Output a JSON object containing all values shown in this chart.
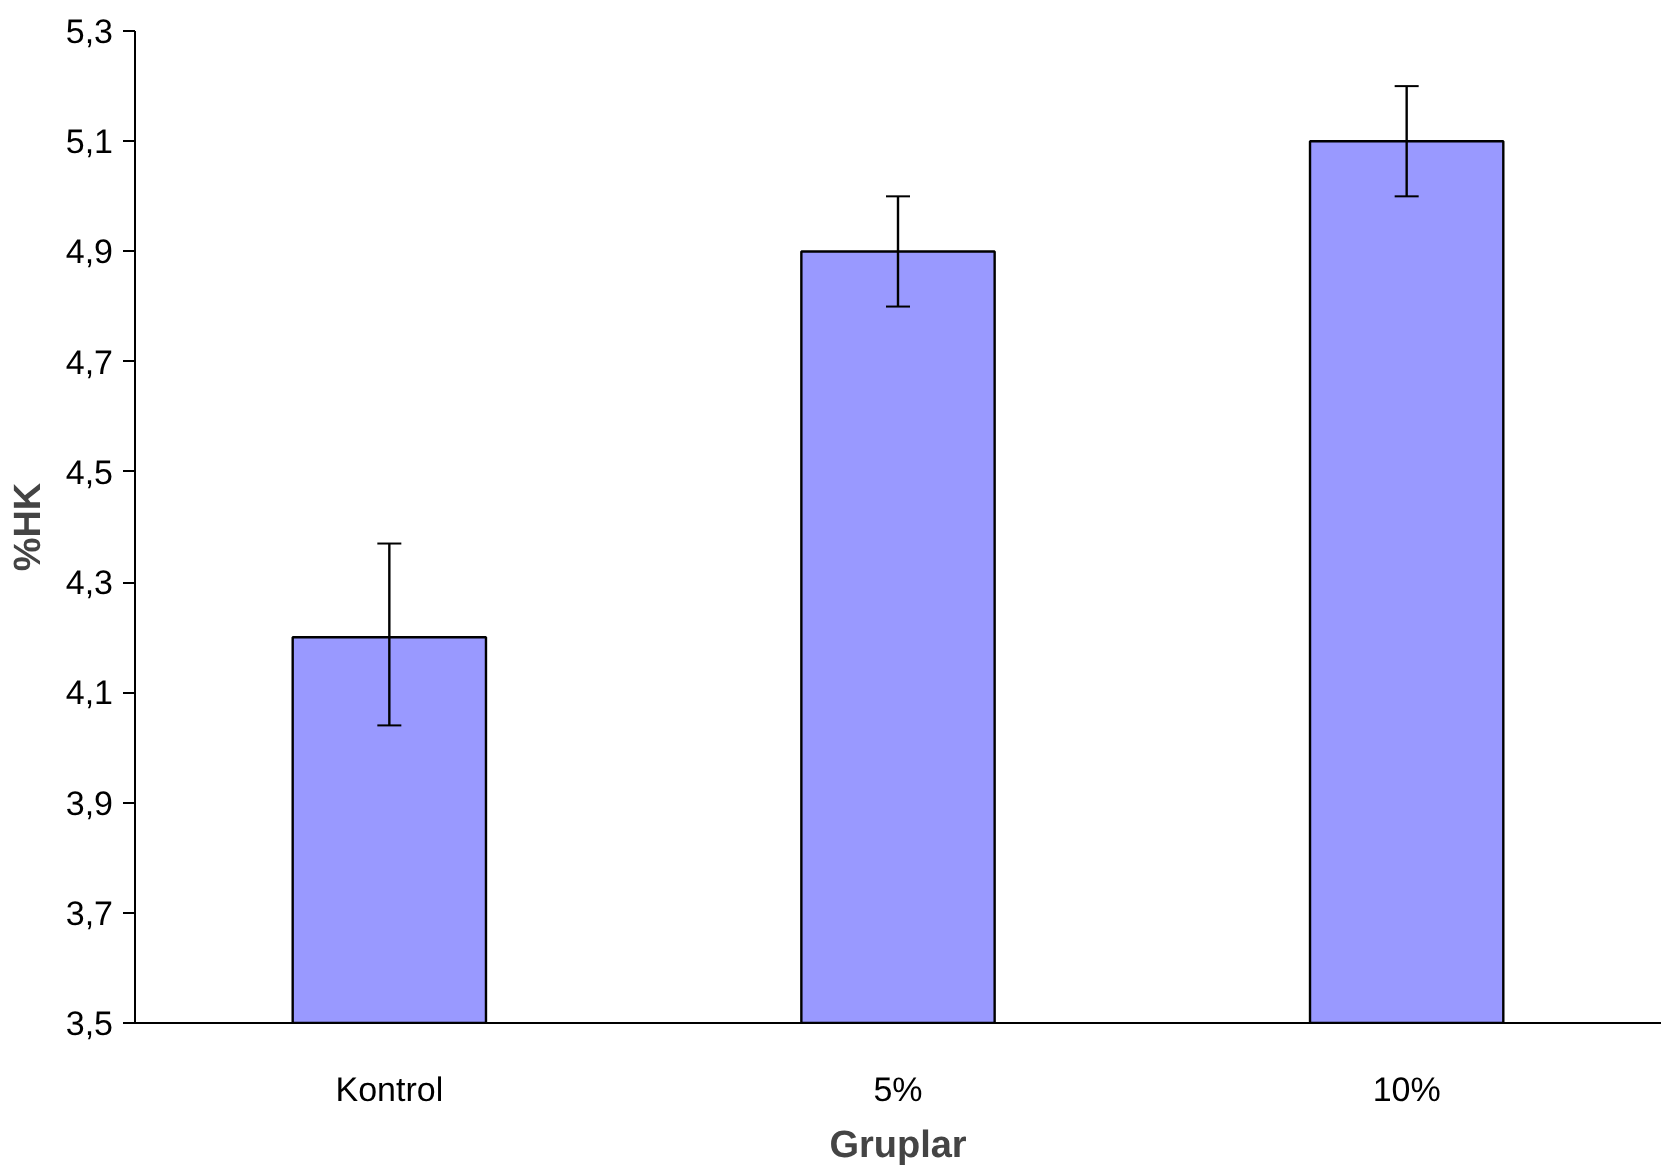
{
  "chart_data": {
    "type": "bar",
    "xlabel": "Gruplar",
    "ylabel": "%HK",
    "categories": [
      "Kontrol",
      "5%",
      "10%"
    ],
    "values": [
      4.2,
      4.9,
      5.1
    ],
    "errors": [
      [
        4.04,
        4.37
      ],
      0.1,
      0.1
    ],
    "color": "#9999ff",
    "ylim": [
      3.5,
      5.3
    ],
    "yticks": [
      {
        "value": 3.5,
        "label": "3,5"
      },
      {
        "value": 3.7,
        "label": "3,7"
      },
      {
        "value": 3.9,
        "label": "3,9"
      },
      {
        "value": 4.1,
        "label": "4,1"
      },
      {
        "value": 4.3,
        "label": "4,3"
      },
      {
        "value": 4.5,
        "label": "4,5"
      },
      {
        "value": 4.7,
        "label": "4,7"
      },
      {
        "value": 4.9,
        "label": "4,9"
      },
      {
        "value": 5.1,
        "label": "5,1"
      },
      {
        "value": 5.3,
        "label": "5,3"
      }
    ],
    "grid": false
  }
}
